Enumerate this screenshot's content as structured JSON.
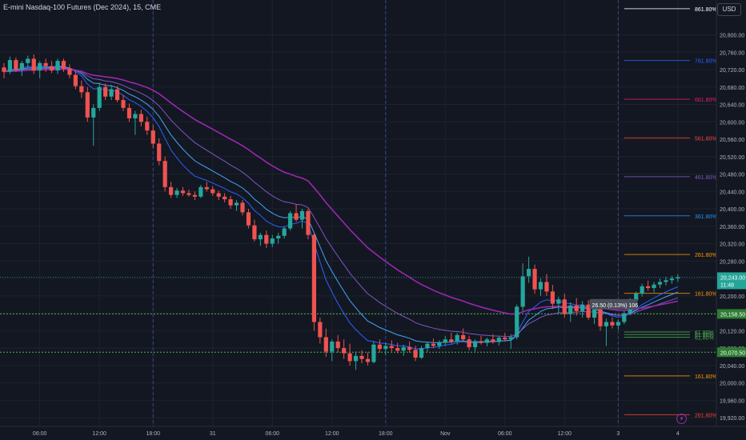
{
  "header": {
    "title": "E-mini Nasdaq-100 Futures (Dec 2024), 15, CME",
    "currency": "USD"
  },
  "colors": {
    "background": "#131722",
    "up": "#26a69a",
    "down": "#ef5350",
    "grid": "#1e222d",
    "session": "#2f4a8a",
    "ma_fast": "#2962ff",
    "ma_mid": "#42a5f5",
    "ma_slow": "#7e57c2",
    "ma_long": "#9c27b0",
    "last_price_bg": "#26a69a",
    "level_bg": "#2e7d32"
  },
  "icons": {
    "alert": "lightning-icon"
  },
  "chart_data": {
    "type": "candlestick",
    "title": "E-mini Nasdaq-100 Futures (Dec 2024), 15, CME",
    "ylim": [
      19900,
      20880
    ],
    "y_ticks": [
      "20,800.00",
      "20,760.00",
      "20,720.00",
      "20,680.00",
      "20,640.00",
      "20,600.00",
      "20,560.00",
      "20,520.00",
      "20,480.00",
      "20,440.00",
      "20,400.00",
      "20,360.00",
      "20,320.00",
      "20,280.00",
      "20,240.00",
      "20,200.00",
      "20,160.00",
      "20,120.00",
      "20,080.00",
      "20,040.00",
      "20,000.00",
      "19,960.00",
      "19,920.00"
    ],
    "y_tick_values": [
      20800,
      20760,
      20720,
      20680,
      20640,
      20600,
      20560,
      20520,
      20480,
      20440,
      20400,
      20360,
      20320,
      20280,
      20240,
      20200,
      20160,
      20120,
      20080,
      20040,
      20000,
      19960,
      19920
    ],
    "x_ticks": [
      "06:00",
      "12:00",
      "18:00",
      "31",
      "06:00",
      "12:00",
      "18:00",
      "Nov",
      "06:00",
      "12:00",
      "3",
      "4"
    ],
    "x_tick_bars": [
      6,
      16,
      25,
      35,
      45,
      55,
      64,
      74,
      84,
      94,
      103,
      113
    ],
    "session_breaks": [
      25,
      64,
      103
    ],
    "fib_levels": [
      {
        "label": "861.80%",
        "price": 20860,
        "color": "#ffffff"
      },
      {
        "label": "761.80%",
        "price": 20741,
        "color": "#2962ff"
      },
      {
        "label": "661.80%",
        "price": 20652,
        "color": "#e91e63"
      },
      {
        "label": "561.80%",
        "price": 20563,
        "color": "#f44336"
      },
      {
        "label": "461.80%",
        "price": 20474,
        "color": "#7e57c2"
      },
      {
        "label": "361.80%",
        "price": 20384,
        "color": "#2196f3"
      },
      {
        "label": "261.80%",
        "price": 20295,
        "color": "#ff9800"
      },
      {
        "label": "161.80%",
        "price": 20206,
        "color": "#ff9800"
      },
      {
        "label": "61.80%",
        "price": 20117,
        "color": "#4caf50"
      },
      {
        "label": "61.80%",
        "price": 20111,
        "color": "#4caf50"
      },
      {
        "label": "61.80%",
        "price": 20105,
        "color": "#4caf50"
      },
      {
        "label": "161.80%",
        "price": 20016,
        "color": "#ff9800"
      },
      {
        "label": "261.80%",
        "price": 19927,
        "color": "#f44336"
      }
    ],
    "fib_start_bar": 104,
    "price_lines": [
      {
        "label": "20,158.50",
        "price": 20158.5,
        "style": "dotted",
        "color": "#4caf50"
      },
      {
        "label": "20,070.50",
        "price": 20070.5,
        "style": "dotted",
        "color": "#4caf50"
      }
    ],
    "last_price": {
      "label": "20,243.00",
      "countdown": "11:48",
      "price": 20243
    },
    "measure_label": "26.50 (0.13%) 106",
    "measure_at": {
      "bar": 99,
      "price": 20178
    },
    "ohlc": [
      [
        20725,
        20735,
        20700,
        20715
      ],
      [
        20715,
        20750,
        20710,
        20742
      ],
      [
        20742,
        20748,
        20715,
        20720
      ],
      [
        20720,
        20740,
        20705,
        20735
      ],
      [
        20735,
        20752,
        20725,
        20745
      ],
      [
        20745,
        20755,
        20710,
        20718
      ],
      [
        20718,
        20740,
        20700,
        20735
      ],
      [
        20735,
        20745,
        20715,
        20728
      ],
      [
        20728,
        20740,
        20712,
        20718
      ],
      [
        20718,
        20745,
        20710,
        20740
      ],
      [
        20740,
        20745,
        20715,
        20722
      ],
      [
        20722,
        20732,
        20700,
        20708
      ],
      [
        20708,
        20718,
        20675,
        20682
      ],
      [
        20682,
        20695,
        20655,
        20668
      ],
      [
        20668,
        20680,
        20600,
        20610
      ],
      [
        20610,
        20640,
        20545,
        20632
      ],
      [
        20632,
        20690,
        20625,
        20680
      ],
      [
        20680,
        20688,
        20650,
        20658
      ],
      [
        20658,
        20685,
        20650,
        20675
      ],
      [
        20675,
        20682,
        20645,
        20650
      ],
      [
        20650,
        20662,
        20625,
        20632
      ],
      [
        20632,
        20642,
        20600,
        20608
      ],
      [
        20608,
        20625,
        20570,
        20618
      ],
      [
        20618,
        20628,
        20590,
        20600
      ],
      [
        20600,
        20612,
        20570,
        20580
      ],
      [
        20580,
        20592,
        20540,
        20550
      ],
      [
        20550,
        20562,
        20500,
        20510
      ],
      [
        20510,
        20520,
        20440,
        20450
      ],
      [
        20450,
        20462,
        20425,
        20432
      ],
      [
        20432,
        20448,
        20425,
        20442
      ],
      [
        20442,
        20450,
        20430,
        20436
      ],
      [
        20436,
        20444,
        20428,
        20432
      ],
      [
        20432,
        20440,
        20420,
        20428
      ],
      [
        20428,
        20455,
        20425,
        20450
      ],
      [
        20450,
        20462,
        20440,
        20445
      ],
      [
        20445,
        20452,
        20430,
        20436
      ],
      [
        20436,
        20442,
        20420,
        20428
      ],
      [
        20428,
        20436,
        20415,
        20422
      ],
      [
        20422,
        20430,
        20400,
        20408
      ],
      [
        20408,
        20420,
        20395,
        20414
      ],
      [
        20414,
        20420,
        20385,
        20392
      ],
      [
        20392,
        20400,
        20355,
        20362
      ],
      [
        20362,
        20375,
        20325,
        20330
      ],
      [
        20330,
        20345,
        20315,
        20340
      ],
      [
        20340,
        20350,
        20310,
        20320
      ],
      [
        20320,
        20340,
        20312,
        20332
      ],
      [
        20332,
        20345,
        20320,
        20338
      ],
      [
        20338,
        20360,
        20332,
        20355
      ],
      [
        20355,
        20395,
        20350,
        20390
      ],
      [
        20390,
        20410,
        20370,
        20375
      ],
      [
        20375,
        20400,
        20355,
        20395
      ],
      [
        20395,
        20400,
        20330,
        20340
      ],
      [
        20340,
        20345,
        20120,
        20140
      ],
      [
        20140,
        20150,
        20090,
        20105
      ],
      [
        20105,
        20125,
        20060,
        20072
      ],
      [
        20072,
        20100,
        20050,
        20095
      ],
      [
        20095,
        20110,
        20070,
        20080
      ],
      [
        20080,
        20100,
        20055,
        20068
      ],
      [
        20068,
        20090,
        20040,
        20050
      ],
      [
        20050,
        20072,
        20030,
        20062
      ],
      [
        20062,
        20075,
        20045,
        20055
      ],
      [
        20055,
        20070,
        20040,
        20048
      ],
      [
        20048,
        20095,
        20045,
        20088
      ],
      [
        20088,
        20100,
        20070,
        20078
      ],
      [
        20078,
        20092,
        20065,
        20085
      ],
      [
        20085,
        20098,
        20072,
        20080
      ],
      [
        20080,
        20092,
        20068,
        20074
      ],
      [
        20074,
        20088,
        20062,
        20082
      ],
      [
        20082,
        20095,
        20070,
        20076
      ],
      [
        20076,
        20085,
        20050,
        20058
      ],
      [
        20058,
        20085,
        20055,
        20080
      ],
      [
        20080,
        20095,
        20072,
        20090
      ],
      [
        20090,
        20102,
        20080,
        20085
      ],
      [
        20085,
        20098,
        20078,
        20092
      ],
      [
        20092,
        20108,
        20085,
        20100
      ],
      [
        20100,
        20115,
        20090,
        20095
      ],
      [
        20095,
        20115,
        20088,
        20110
      ],
      [
        20110,
        20125,
        20095,
        20100
      ],
      [
        20100,
        20108,
        20075,
        20082
      ],
      [
        20082,
        20100,
        20072,
        20096
      ],
      [
        20096,
        20108,
        20088,
        20092
      ],
      [
        20092,
        20104,
        20084,
        20100
      ],
      [
        20100,
        20112,
        20090,
        20094
      ],
      [
        20094,
        20108,
        20086,
        20104
      ],
      [
        20104,
        20115,
        20095,
        20100
      ],
      [
        20100,
        20112,
        20078,
        20105
      ],
      [
        20105,
        20180,
        20100,
        20175
      ],
      [
        20175,
        20275,
        20165,
        20245
      ],
      [
        20245,
        20290,
        20230,
        20262
      ],
      [
        20262,
        20272,
        20205,
        20215
      ],
      [
        20215,
        20240,
        20200,
        20232
      ],
      [
        20232,
        20250,
        20200,
        20210
      ],
      [
        20210,
        20225,
        20170,
        20182
      ],
      [
        20182,
        20198,
        20160,
        20192
      ],
      [
        20192,
        20205,
        20150,
        20158
      ],
      [
        20158,
        20185,
        20140,
        20178
      ],
      [
        20178,
        20195,
        20155,
        20165
      ],
      [
        20165,
        20188,
        20150,
        20180
      ],
      [
        20180,
        20190,
        20145,
        20150
      ],
      [
        20150,
        20175,
        20135,
        20170
      ],
      [
        20170,
        20180,
        20120,
        20130
      ],
      [
        20130,
        20148,
        20085,
        20140
      ],
      [
        20140,
        20150,
        20125,
        20132
      ],
      [
        20132,
        20145,
        20122,
        20140
      ],
      [
        20140,
        20165,
        20135,
        20160
      ],
      [
        20160,
        20195,
        20155,
        20190
      ],
      [
        20190,
        20210,
        20182,
        20205
      ],
      [
        20205,
        20228,
        20198,
        20222
      ],
      [
        20222,
        20235,
        20212,
        20218
      ],
      [
        20218,
        20232,
        20208,
        20226
      ],
      [
        20226,
        20240,
        20218,
        20232
      ],
      [
        20232,
        20244,
        20224,
        20236
      ],
      [
        20236,
        20246,
        20228,
        20240
      ],
      [
        20240,
        20250,
        20232,
        20243
      ]
    ]
  }
}
